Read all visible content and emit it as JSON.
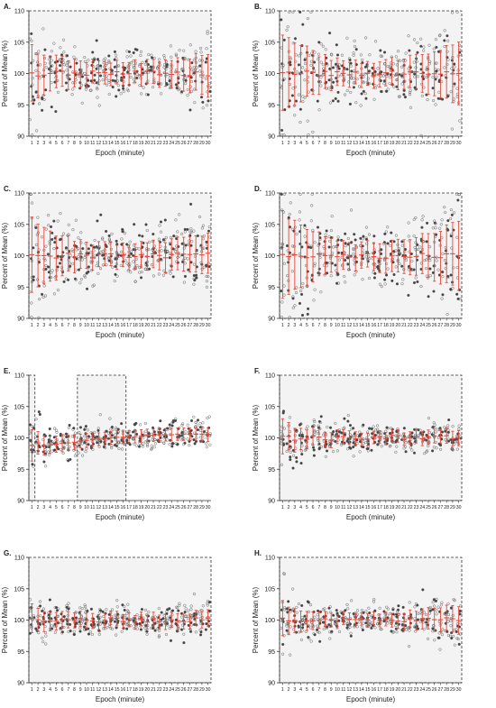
{
  "figure": {
    "panels": [
      {
        "letter": "A.",
        "ylabel": "Percent of Mean (%)",
        "xlabel": "Epoch (minute)"
      },
      {
        "letter": "B.",
        "ylabel": "Percent of Mean (%)",
        "xlabel": "Epoch (minute)"
      },
      {
        "letter": "C.",
        "ylabel": "Percent of Mean (%)",
        "xlabel": "Epoch (minute)"
      },
      {
        "letter": "D.",
        "ylabel": "Percent of Mean (%)",
        "xlabel": "Epoch (minute)"
      },
      {
        "letter": "E.",
        "ylabel": "Percent of Mean (%)",
        "xlabel": "Epoch (minute)"
      },
      {
        "letter": "F.",
        "ylabel": "Percent of Mean (%)",
        "xlabel": "Epoch (minute)"
      },
      {
        "letter": "G.",
        "ylabel": "Percent of Mean (%)",
        "xlabel": "Epoch (minute)"
      },
      {
        "letter": "H.",
        "ylabel": "Percent of Mean (%)",
        "xlabel": "Epoch (minute)"
      }
    ]
  },
  "chart_data": [
    {
      "panel": "A.",
      "type": "scatter",
      "xlabel": "Epoch (minute)",
      "ylabel": "Percent of Mean (%)",
      "ylim": [
        90,
        110
      ],
      "yticks": [
        90,
        95,
        100,
        105,
        110
      ],
      "categories": [
        "1",
        "2",
        "3",
        "4",
        "5",
        "6",
        "7",
        "8",
        "9",
        "10",
        "11",
        "12",
        "13",
        "14",
        "15",
        "16",
        "17",
        "18",
        "19",
        "20",
        "21",
        "22",
        "23",
        "24",
        "25",
        "26",
        "27",
        "28",
        "29",
        "30"
      ],
      "sd": [
        4.5,
        3.5,
        3.2,
        2.8,
        2.6,
        2.4,
        2.3,
        2.2,
        2.1,
        2.0,
        1.9,
        1.9,
        1.8,
        1.8,
        1.8,
        1.8,
        1.8,
        1.8,
        1.8,
        1.9,
        1.9,
        2.0,
        2.1,
        2.2,
        2.3,
        2.5,
        2.7,
        2.9,
        3.1,
        3.4
      ],
      "shaded_epochs": [
        [
          1,
          30
        ]
      ],
      "marker_color": "#555555",
      "error_bar_color": "#e8483a"
    },
    {
      "panel": "B.",
      "type": "scatter",
      "xlabel": "Epoch (minute)",
      "ylabel": "Percent of Mean (%)",
      "ylim": [
        90,
        110
      ],
      "yticks": [
        90,
        95,
        100,
        105,
        110
      ],
      "categories": [
        "1",
        "2",
        "3",
        "4",
        "5",
        "6",
        "7",
        "8",
        "9",
        "10",
        "11",
        "12",
        "13",
        "14",
        "15",
        "16",
        "17",
        "18",
        "19",
        "20",
        "21",
        "22",
        "23",
        "24",
        "25",
        "26",
        "27",
        "28",
        "29",
        "30"
      ],
      "sd": [
        6.0,
        5.5,
        5.0,
        4.5,
        4.0,
        3.5,
        3.0,
        2.7,
        2.4,
        2.2,
        2.0,
        2.0,
        1.9,
        1.9,
        1.9,
        2.0,
        2.0,
        2.1,
        2.2,
        2.3,
        2.4,
        2.6,
        2.8,
        3.0,
        3.2,
        3.5,
        3.8,
        4.2,
        4.6,
        5.0
      ],
      "shaded_epochs": [
        [
          1,
          30
        ]
      ],
      "marker_color": "#555555",
      "error_bar_color": "#e8483a"
    },
    {
      "panel": "C.",
      "type": "scatter",
      "xlabel": "Epoch (minute)",
      "ylabel": "Percent of Mean (%)",
      "ylim": [
        90,
        110
      ],
      "yticks": [
        90,
        95,
        100,
        105,
        110
      ],
      "categories": [
        "1",
        "2",
        "3",
        "4",
        "5",
        "6",
        "7",
        "8",
        "9",
        "10",
        "11",
        "12",
        "13",
        "14",
        "15",
        "16",
        "17",
        "18",
        "19",
        "20",
        "21",
        "22",
        "23",
        "24",
        "25",
        "26",
        "27",
        "28",
        "29",
        "30"
      ],
      "sd": [
        6.0,
        5.0,
        4.5,
        4.0,
        3.5,
        3.2,
        2.8,
        2.5,
        2.3,
        2.1,
        2.0,
        2.0,
        1.9,
        1.9,
        1.9,
        1.9,
        2.0,
        2.0,
        2.1,
        2.2,
        2.2,
        2.3,
        2.4,
        2.5,
        2.6,
        2.7,
        2.8,
        2.9,
        3.0,
        3.2
      ],
      "shaded_epochs": [
        [
          1,
          30
        ]
      ],
      "marker_color": "#555555",
      "error_bar_color": "#e8483a"
    },
    {
      "panel": "D.",
      "type": "scatter",
      "xlabel": "Epoch (minute)",
      "ylabel": "Percent of Mean (%)",
      "ylim": [
        90,
        110
      ],
      "yticks": [
        90,
        95,
        100,
        105,
        110
      ],
      "categories": [
        "1",
        "2",
        "3",
        "4",
        "5",
        "6",
        "7",
        "8",
        "9",
        "10",
        "11",
        "12",
        "13",
        "14",
        "15",
        "16",
        "17",
        "18",
        "19",
        "20",
        "21",
        "22",
        "23",
        "24",
        "25",
        "26",
        "27",
        "28",
        "29",
        "30"
      ],
      "sd": [
        7.0,
        6.0,
        5.5,
        5.0,
        4.5,
        4.0,
        3.5,
        3.0,
        2.7,
        2.5,
        2.3,
        2.2,
        2.1,
        2.1,
        2.1,
        2.2,
        2.3,
        2.4,
        2.5,
        2.6,
        2.7,
        2.8,
        3.0,
        3.2,
        3.5,
        3.8,
        4.2,
        4.6,
        5.0,
        5.5
      ],
      "shaded_epochs": [
        [
          1,
          30
        ]
      ],
      "marker_color": "#555555",
      "error_bar_color": "#e8483a"
    },
    {
      "panel": "E.",
      "type": "scatter",
      "xlabel": "Epoch (minute)",
      "ylabel": "Percent of Mean (%)",
      "ylim": [
        90,
        110
      ],
      "yticks": [
        90,
        95,
        100,
        105,
        110
      ],
      "categories": [
        "1",
        "2",
        "3",
        "4",
        "5",
        "6",
        "7",
        "8",
        "9",
        "10",
        "11",
        "12",
        "13",
        "14",
        "15",
        "16",
        "17",
        "18",
        "19",
        "20",
        "21",
        "22",
        "23",
        "24",
        "25",
        "26",
        "27",
        "28",
        "29",
        "30"
      ],
      "means": [
        98.8,
        99.2,
        98.8,
        98.9,
        99.0,
        99.1,
        99.2,
        99.3,
        99.5,
        99.6,
        99.7,
        99.8,
        99.9,
        100.0,
        100.1,
        100.1,
        100.2,
        100.2,
        100.3,
        100.4,
        100.4,
        100.5,
        100.5,
        100.5,
        100.6,
        100.6,
        100.6,
        100.6,
        100.6,
        100.5
      ],
      "sd": [
        2.5,
        1.8,
        1.5,
        1.4,
        1.3,
        1.3,
        1.2,
        1.2,
        1.1,
        1.1,
        1.1,
        1.0,
        1.0,
        1.0,
        1.0,
        1.0,
        1.0,
        1.0,
        1.0,
        1.0,
        1.0,
        1.0,
        1.0,
        1.0,
        1.0,
        1.0,
        1.0,
        1.0,
        1.1,
        1.1
      ],
      "shaded_epochs": [
        [
          1,
          1
        ],
        [
          9,
          16
        ]
      ],
      "marker_color": "#555555",
      "error_bar_color": "#e8483a"
    },
    {
      "panel": "F.",
      "type": "scatter",
      "xlabel": "Epoch (minute)",
      "ylabel": "Percent of Mean (%)",
      "ylim": [
        90,
        110
      ],
      "yticks": [
        90,
        95,
        100,
        105,
        110
      ],
      "categories": [
        "1",
        "2",
        "3",
        "4",
        "5",
        "6",
        "7",
        "8",
        "9",
        "10",
        "11",
        "12",
        "13",
        "14",
        "15",
        "16",
        "17",
        "18",
        "19",
        "20",
        "21",
        "22",
        "23",
        "24",
        "25",
        "26",
        "27",
        "28",
        "29",
        "30"
      ],
      "sd": [
        2.8,
        2.2,
        1.9,
        1.7,
        1.5,
        1.4,
        1.3,
        1.2,
        1.2,
        1.1,
        1.1,
        1.1,
        1.1,
        1.0,
        1.0,
        1.0,
        1.0,
        1.0,
        1.0,
        1.0,
        1.0,
        1.0,
        1.1,
        1.1,
        1.1,
        1.1,
        1.1,
        1.2,
        1.2,
        1.2
      ],
      "shaded_epochs": [
        [
          1,
          30
        ]
      ],
      "marker_color": "#555555",
      "error_bar_color": "#e8483a"
    },
    {
      "panel": "G.",
      "type": "scatter",
      "xlabel": "Epoch (minute)",
      "ylabel": "Percent of Mean (%)",
      "ylim": [
        90,
        110
      ],
      "yticks": [
        90,
        95,
        100,
        105,
        110
      ],
      "categories": [
        "1",
        "2",
        "3",
        "4",
        "5",
        "6",
        "7",
        "8",
        "9",
        "10",
        "11",
        "12",
        "13",
        "14",
        "15",
        "16",
        "17",
        "18",
        "19",
        "20",
        "21",
        "22",
        "23",
        "24",
        "25",
        "26",
        "27",
        "28",
        "29",
        "30"
      ],
      "sd": [
        2.3,
        1.8,
        1.6,
        1.5,
        1.4,
        1.3,
        1.3,
        1.2,
        1.2,
        1.2,
        1.2,
        1.2,
        1.1,
        1.1,
        1.1,
        1.1,
        1.1,
        1.1,
        1.1,
        1.1,
        1.1,
        1.1,
        1.2,
        1.2,
        1.2,
        1.2,
        1.2,
        1.2,
        1.3,
        1.3
      ],
      "shaded_epochs": [
        [
          1,
          30
        ]
      ],
      "marker_color": "#555555",
      "error_bar_color": "#e8483a"
    },
    {
      "panel": "H.",
      "type": "scatter",
      "xlabel": "Epoch (minute)",
      "ylabel": "Percent of Mean (%)",
      "ylim": [
        90,
        110
      ],
      "yticks": [
        90,
        95,
        100,
        105,
        110
      ],
      "categories": [
        "1",
        "2",
        "3",
        "4",
        "5",
        "6",
        "7",
        "8",
        "9",
        "10",
        "11",
        "12",
        "13",
        "14",
        "15",
        "16",
        "17",
        "18",
        "19",
        "20",
        "21",
        "22",
        "23",
        "24",
        "25",
        "26",
        "27",
        "28",
        "29",
        "30"
      ],
      "sd": [
        2.8,
        2.2,
        1.9,
        1.7,
        1.5,
        1.4,
        1.3,
        1.2,
        1.1,
        1.1,
        1.0,
        1.0,
        1.0,
        1.0,
        1.0,
        1.0,
        1.0,
        1.1,
        1.1,
        1.2,
        1.3,
        1.4,
        1.5,
        1.6,
        1.7,
        1.8,
        1.9,
        2.0,
        2.1,
        2.2
      ],
      "shaded_epochs": [
        [
          1,
          30
        ]
      ],
      "marker_color": "#555555",
      "error_bar_color": "#e8483a"
    }
  ]
}
